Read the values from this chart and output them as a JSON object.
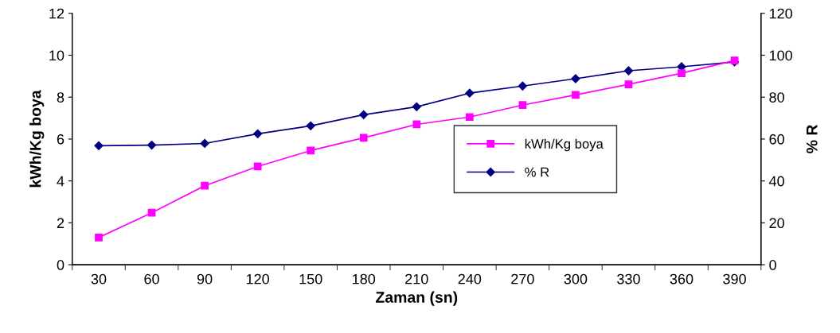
{
  "chart_data": {
    "type": "line",
    "xlabel": "Zaman (sn)",
    "ylabel": "kWh/Kg boya",
    "y2label": "% R",
    "categories": [
      "30",
      "60",
      "90",
      "120",
      "150",
      "180",
      "210",
      "240",
      "270",
      "300",
      "330",
      "360",
      "390"
    ],
    "series": [
      {
        "name": "kWh/Kg boya",
        "color": "#ff00ff",
        "marker": "square",
        "values": [
          1.3,
          2.48,
          3.77,
          4.69,
          5.45,
          6.06,
          6.7,
          7.05,
          7.62,
          8.11,
          8.61,
          9.14,
          9.75
        ]
      },
      {
        "name": "% R",
        "color": "#000080",
        "marker": "diamond",
        "axis": "y2",
        "values": [
          56.8,
          57.1,
          57.9,
          62.5,
          66.3,
          71.6,
          75.4,
          81.9,
          85.3,
          88.8,
          92.6,
          94.5,
          96.8
        ]
      }
    ],
    "ylim": [
      0,
      12
    ],
    "yticks": [
      0,
      2,
      4,
      6,
      8,
      10,
      12
    ],
    "y2lim": [
      0,
      120
    ],
    "y2ticks": [
      0,
      20,
      40,
      60,
      80,
      100,
      120
    ],
    "grid": false,
    "legend": "right"
  }
}
